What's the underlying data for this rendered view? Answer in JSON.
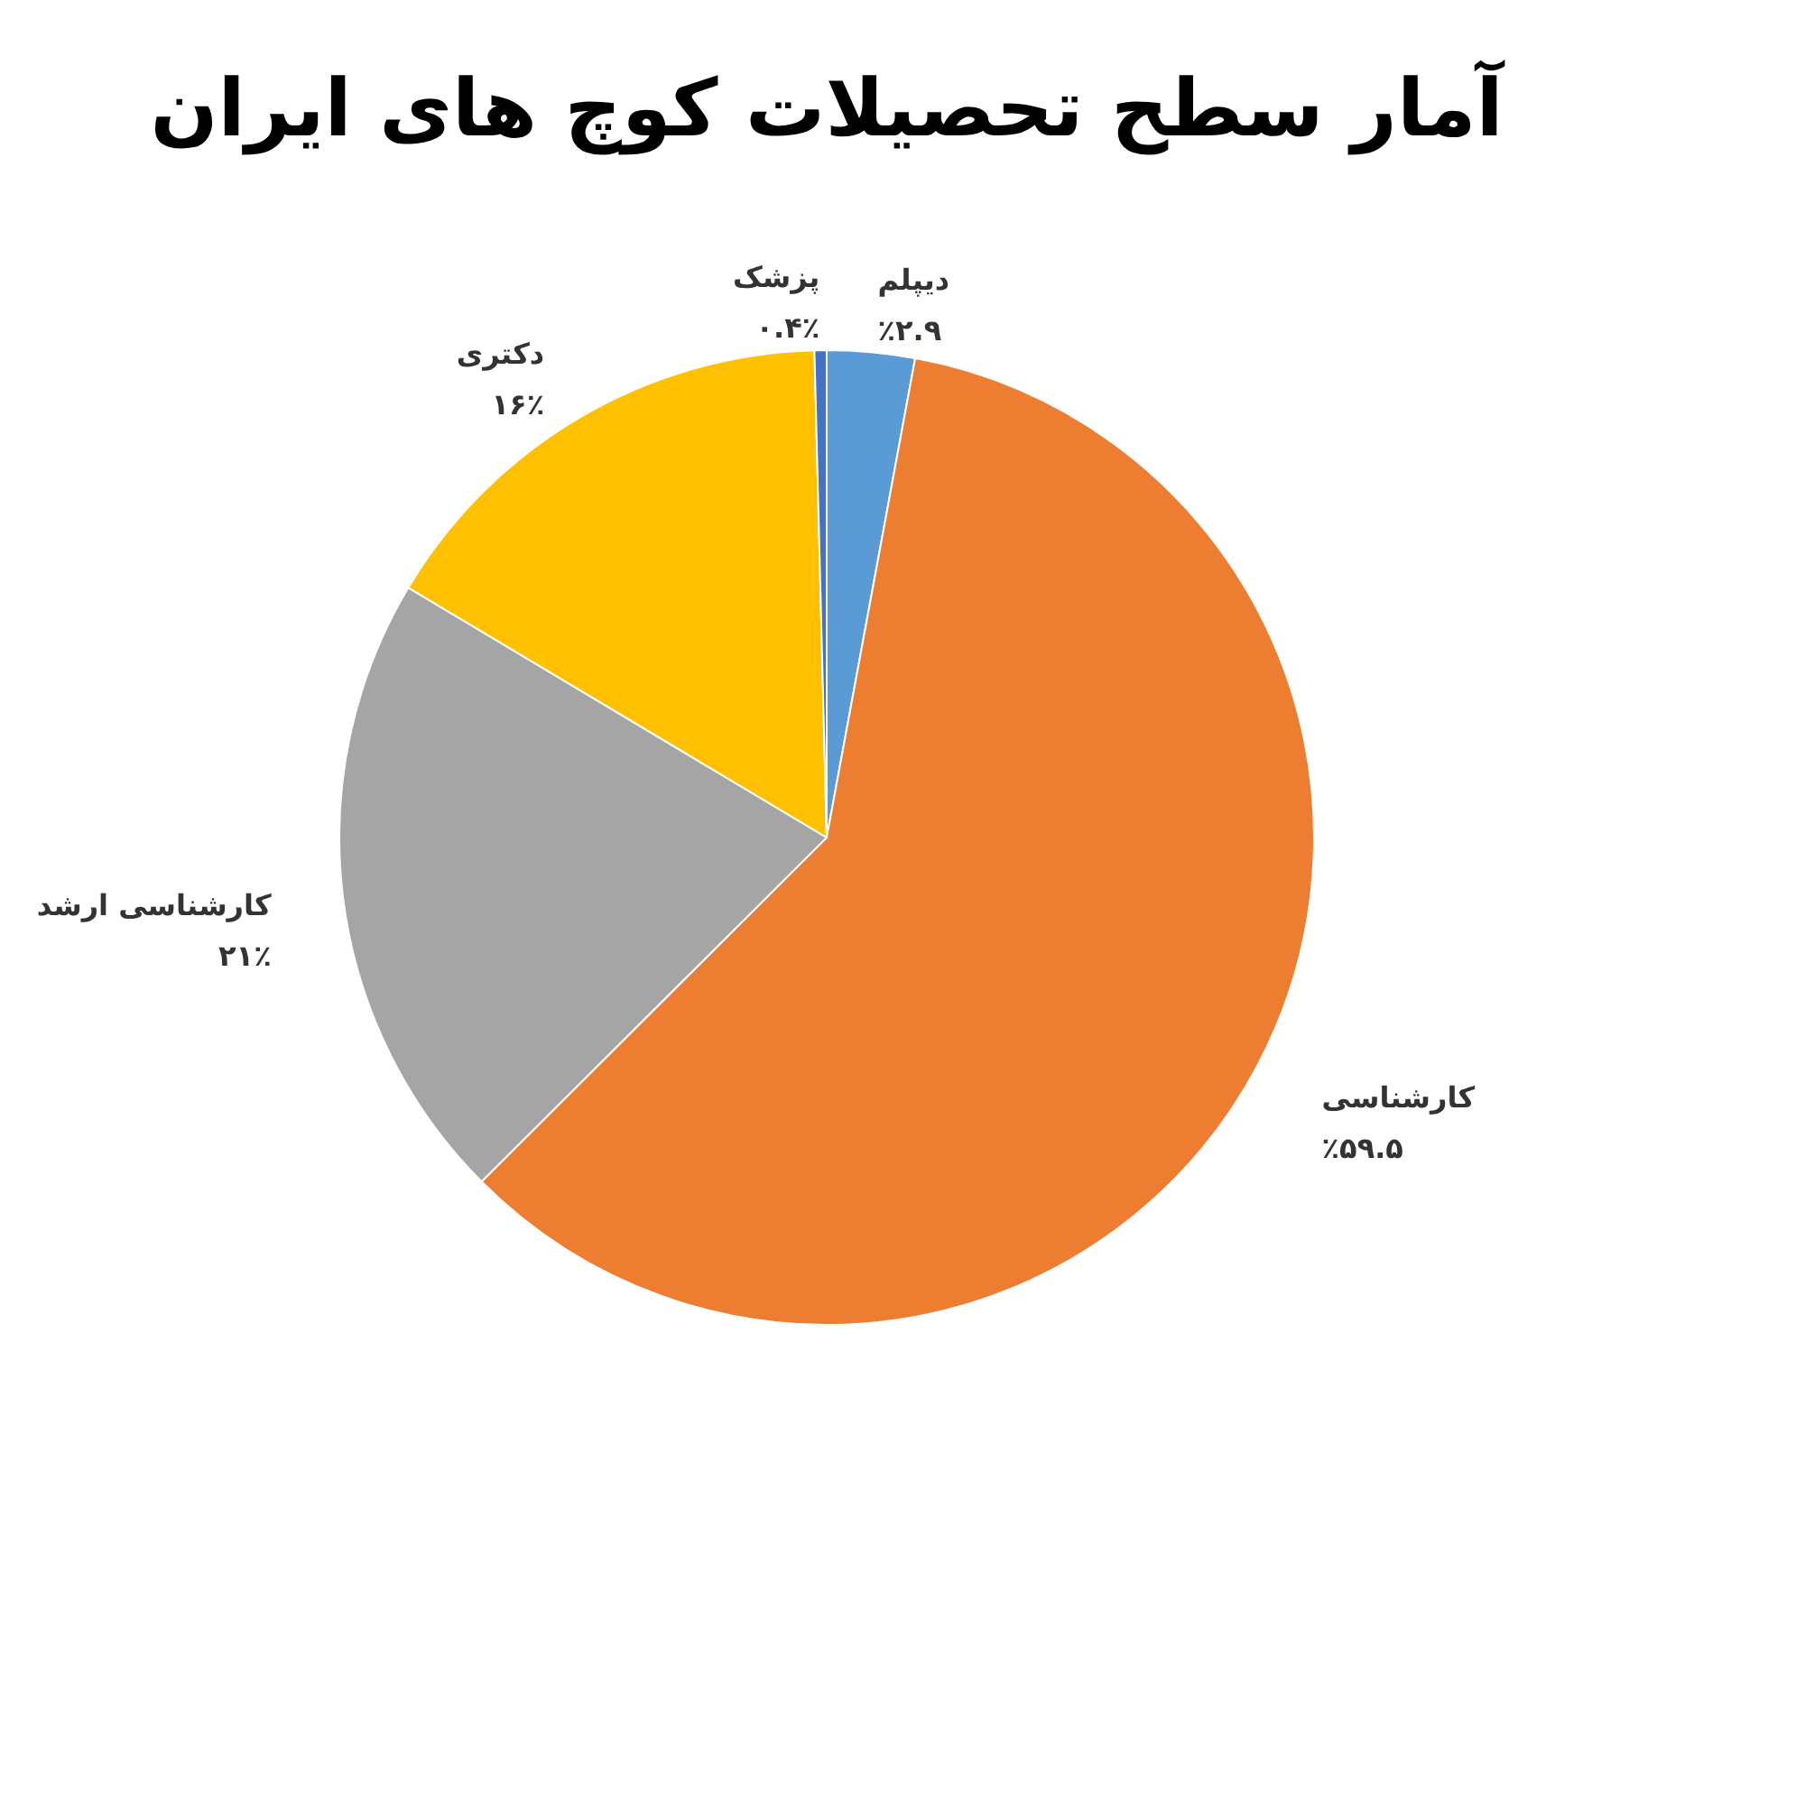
{
  "chart_data": {
    "type": "pie",
    "title": "آمار سطح تحصیلات کوچ های ایران",
    "categories": [
      "دیپلم",
      "کارشناسی",
      "کارشناسی ارشد",
      "دکتری",
      "پزشک"
    ],
    "values": [
      2.9,
      59.5,
      21,
      16,
      0.4
    ],
    "colors": [
      "#5b9bd5",
      "#ed7d31",
      "#a5a5a5",
      "#ffc000",
      "#4472c4"
    ],
    "value_labels": [
      "٪۲.۹",
      "٪۵۹.۵",
      "۲۱٪",
      "۱۶٪",
      "۰.۴٪"
    ],
    "legend": false
  }
}
